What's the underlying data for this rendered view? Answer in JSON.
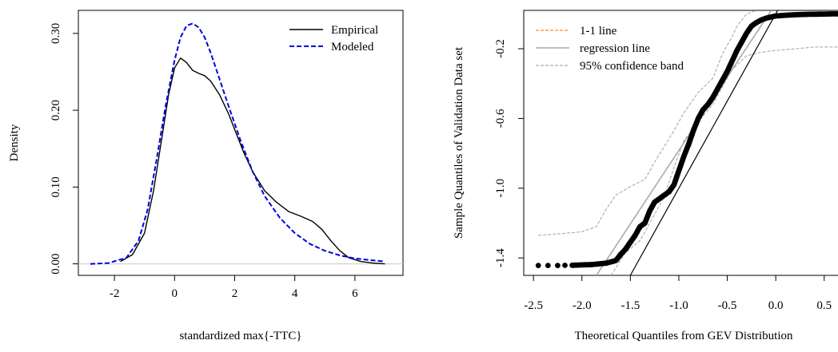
{
  "chart_data": [
    {
      "type": "line",
      "title": "",
      "xlabel": "standardized max{-TTC}",
      "ylabel": "Density",
      "xlim": [
        -3.2,
        7.6
      ],
      "ylim": [
        -0.015,
        0.33
      ],
      "xticks": [
        "-2",
        "0",
        "2",
        "4",
        "6"
      ],
      "yticks": [
        "0.00",
        "0.10",
        "0.20",
        "0.30"
      ],
      "baseline_y": 0,
      "legend_position": "top-right",
      "series": [
        {
          "name": "Empirical",
          "color": "#000000",
          "dash": "solid",
          "x": [
            -1.8,
            -1.4,
            -1.0,
            -0.7,
            -0.4,
            -0.2,
            0.0,
            0.2,
            0.4,
            0.6,
            0.8,
            1.0,
            1.2,
            1.5,
            1.8,
            2.0,
            2.3,
            2.6,
            3.0,
            3.4,
            3.8,
            4.2,
            4.6,
            4.9,
            5.2,
            5.5,
            5.8,
            6.2,
            6.6,
            7.0
          ],
          "y": [
            0.003,
            0.012,
            0.04,
            0.095,
            0.17,
            0.22,
            0.255,
            0.268,
            0.262,
            0.252,
            0.248,
            0.245,
            0.238,
            0.22,
            0.195,
            0.175,
            0.145,
            0.12,
            0.095,
            0.08,
            0.068,
            0.062,
            0.055,
            0.045,
            0.03,
            0.017,
            0.008,
            0.003,
            0.001,
            0.0
          ]
        },
        {
          "name": "Modeled",
          "color": "#0000dd",
          "dash": "dashed",
          "x": [
            -2.8,
            -2.2,
            -1.6,
            -1.2,
            -0.9,
            -0.6,
            -0.3,
            0.0,
            0.2,
            0.4,
            0.6,
            0.8,
            1.0,
            1.2,
            1.5,
            1.8,
            2.2,
            2.6,
            3.0,
            3.5,
            4.0,
            4.5,
            5.0,
            5.5,
            6.0,
            6.5,
            7.0
          ],
          "y": [
            0.0,
            0.001,
            0.008,
            0.03,
            0.07,
            0.135,
            0.205,
            0.265,
            0.295,
            0.31,
            0.313,
            0.308,
            0.295,
            0.275,
            0.24,
            0.205,
            0.16,
            0.12,
            0.088,
            0.06,
            0.04,
            0.026,
            0.017,
            0.011,
            0.007,
            0.005,
            0.003
          ]
        }
      ]
    },
    {
      "type": "scatter",
      "title": "",
      "xlabel": "Theoretical Quantiles from GEV Distribution",
      "ylabel": "Sample Quantiles of Validation Data set",
      "xlim": [
        -2.6,
        0.7
      ],
      "ylim": [
        -1.5,
        0.02
      ],
      "xticks": [
        "-2.5",
        "-2.0",
        "-1.5",
        "-1.0",
        "-0.5",
        "0.0",
        "0.5"
      ],
      "yticks": [
        "-1.4",
        "-1.0",
        "-0.6",
        "-0.2"
      ],
      "legend_position": "top-left",
      "legend": [
        {
          "label": "1-1 line",
          "color": "#ff8c1a",
          "dash": "dashed"
        },
        {
          "label": "regression line",
          "color": "#aaaaaa",
          "dash": "solid"
        },
        {
          "label": "95% confidence band",
          "color": "#aaaaaa",
          "dash": "dashed"
        }
      ],
      "one_to_one_line": {
        "x": [
          -1.5,
          0.06
        ],
        "y": [
          -1.5,
          0.06
        ]
      },
      "regression_line": {
        "x": [
          -1.85,
          0.0
        ],
        "y": [
          -1.5,
          0.06
        ]
      },
      "conf_upper": {
        "x": [
          -2.45,
          -2.2,
          -2.0,
          -1.85,
          -1.75,
          -1.65,
          -1.5,
          -1.35,
          -1.25,
          -1.15,
          -1.05,
          -0.95,
          -0.8,
          -0.65,
          -0.55,
          -0.45,
          -0.4,
          -0.3,
          -0.2
        ],
        "y": [
          -1.27,
          -1.26,
          -1.25,
          -1.22,
          -1.12,
          -1.04,
          -0.99,
          -0.95,
          -0.85,
          -0.76,
          -0.67,
          -0.57,
          -0.45,
          -0.37,
          -0.23,
          -0.13,
          -0.07,
          0.0,
          0.02
        ]
      },
      "conf_lower": {
        "x": [
          -1.7,
          -1.55,
          -1.4,
          -1.3,
          -1.15,
          -1.05,
          -0.95,
          -0.8,
          -0.65,
          -0.55,
          -0.45,
          -0.3,
          -0.15,
          0.0,
          0.2,
          0.4,
          0.7
        ],
        "y": [
          -1.5,
          -1.37,
          -1.3,
          -1.2,
          -1.05,
          -0.88,
          -0.73,
          -0.62,
          -0.52,
          -0.42,
          -0.32,
          -0.24,
          -0.22,
          -0.21,
          -0.2,
          -0.19,
          -0.19
        ]
      },
      "points_path": {
        "x": [
          -2.45,
          -2.35,
          -2.25,
          -2.1,
          -1.9,
          -1.75,
          -1.65,
          -1.6,
          -1.55,
          -1.5,
          -1.45,
          -1.4,
          -1.35,
          -1.3,
          -1.25,
          -1.2,
          -1.15,
          -1.1,
          -1.05,
          -1.0,
          -0.95,
          -0.9,
          -0.85,
          -0.8,
          -0.75,
          -0.7,
          -0.65,
          -0.6,
          -0.55,
          -0.5,
          -0.45,
          -0.4,
          -0.35,
          -0.3,
          -0.25,
          -0.2,
          -0.15,
          -0.1,
          -0.05,
          0.0,
          0.1,
          0.2,
          0.3,
          0.4,
          0.5,
          0.6,
          0.65,
          0.7
        ],
        "y": [
          -1.443,
          -1.443,
          -1.443,
          -1.442,
          -1.438,
          -1.43,
          -1.415,
          -1.38,
          -1.35,
          -1.31,
          -1.27,
          -1.22,
          -1.2,
          -1.13,
          -1.08,
          -1.06,
          -1.04,
          -1.02,
          -0.98,
          -0.9,
          -0.82,
          -0.75,
          -0.67,
          -0.6,
          -0.55,
          -0.52,
          -0.48,
          -0.43,
          -0.38,
          -0.33,
          -0.27,
          -0.21,
          -0.16,
          -0.11,
          -0.07,
          -0.05,
          -0.035,
          -0.025,
          -0.018,
          -0.012,
          -0.008,
          -0.005,
          -0.003,
          -0.002,
          -0.001,
          0.0,
          0.0,
          0.0
        ]
      }
    }
  ]
}
